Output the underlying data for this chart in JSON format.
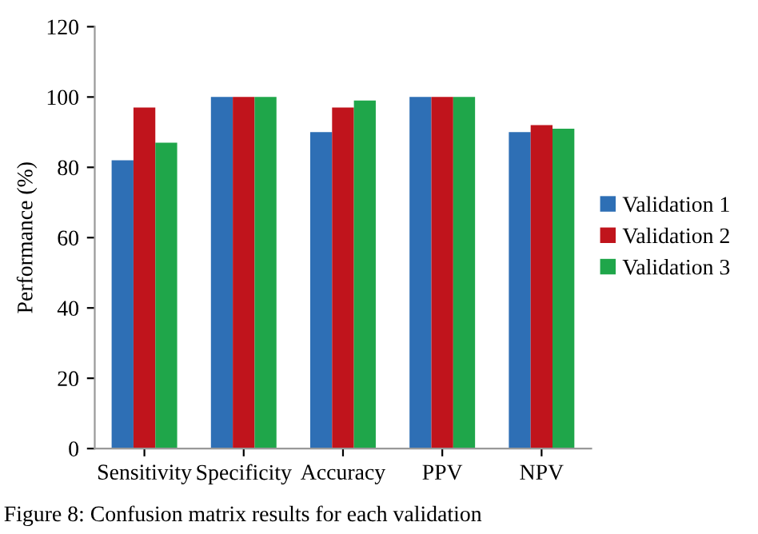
{
  "chart_data": {
    "type": "bar",
    "ylabel": "Performance (%)",
    "categories": [
      "Sensitivity",
      "Specificity",
      "Accuracy",
      "PPV",
      "NPV"
    ],
    "series": [
      {
        "name": "Validation 1",
        "color": "#2e6fb5",
        "values": [
          82,
          100,
          90,
          100,
          90
        ]
      },
      {
        "name": "Validation 2",
        "color": "#c0141c",
        "values": [
          97,
          100,
          97,
          100,
          92
        ]
      },
      {
        "name": "Validation 3",
        "color": "#1fa64a",
        "values": [
          87,
          100,
          99,
          100,
          91
        ]
      }
    ],
    "ylim": [
      0,
      120
    ],
    "yticks": [
      0,
      20,
      40,
      60,
      80,
      100,
      120
    ],
    "grid": false,
    "legend": "right",
    "annotations": [
      "Figure 8: Confusion matrix results for each validation"
    ]
  }
}
